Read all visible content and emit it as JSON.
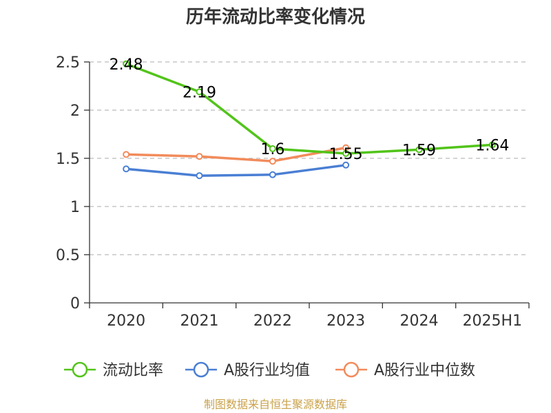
{
  "chart_data": {
    "type": "line",
    "title": "历年流动比率变化情况",
    "categories": [
      "2020",
      "2021",
      "2022",
      "2023",
      "2024",
      "2025H1"
    ],
    "ylim": [
      0,
      2.5
    ],
    "yticks": [
      "0",
      "0.5",
      "1",
      "1.5",
      "2",
      "2.5"
    ],
    "grid": true,
    "legend_position": "bottom",
    "series": [
      {
        "name": "流动比率",
        "color": "#52c41a",
        "values": [
          2.48,
          2.19,
          1.6,
          1.55,
          1.59,
          1.64
        ],
        "labels": [
          "2.48",
          "2.19",
          "1.6",
          "1.55",
          "1.59",
          "1.64"
        ]
      },
      {
        "name": "A股行业均值",
        "color": "#4a7fd4",
        "values": [
          1.39,
          1.32,
          1.33,
          1.43,
          null,
          null
        ]
      },
      {
        "name": "A股行业中位数",
        "color": "#f28b5b",
        "values": [
          1.54,
          1.52,
          1.47,
          1.61,
          null,
          null
        ]
      }
    ],
    "source_text": "制图数据来自恒生聚源数据库"
  }
}
